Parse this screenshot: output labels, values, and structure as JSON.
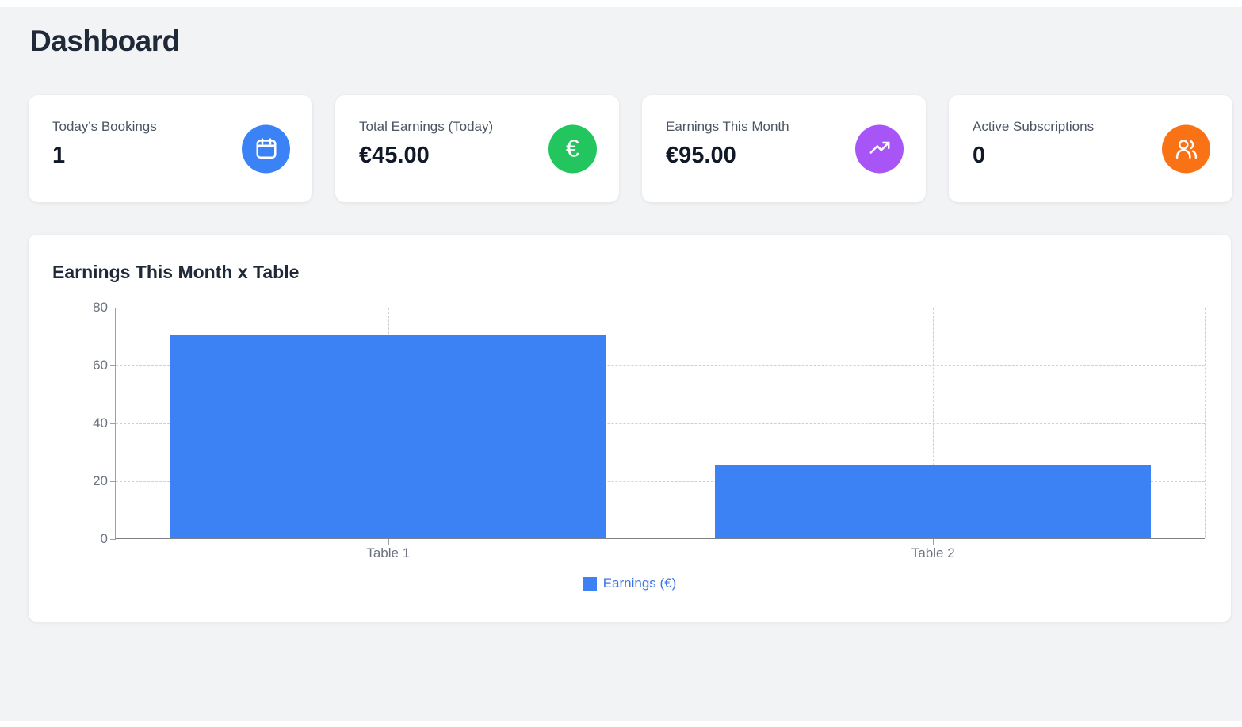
{
  "page": {
    "title": "Dashboard"
  },
  "stats": [
    {
      "label": "Today's Bookings",
      "value": "1",
      "icon": "calendar-icon",
      "color": "#3b82f6"
    },
    {
      "label": "Total Earnings (Today)",
      "value": "€45.00",
      "icon": "euro-icon",
      "color": "#22c55e"
    },
    {
      "label": "Earnings This Month",
      "value": "€95.00",
      "icon": "trending-up-icon",
      "color": "#a855f7"
    },
    {
      "label": "Active Subscriptions",
      "value": "0",
      "icon": "users-icon",
      "color": "#f97316"
    }
  ],
  "chart_card": {
    "title": "Earnings This Month x Table"
  },
  "chart_data": {
    "type": "bar",
    "title": "Earnings This Month x Table",
    "categories": [
      "Table 1",
      "Table 2"
    ],
    "series": [
      {
        "name": "Earnings (€)",
        "color": "#3d82f4",
        "values": [
          70,
          25
        ]
      }
    ],
    "xlabel": "",
    "ylabel": "",
    "ylim": [
      0,
      80
    ],
    "yticks": [
      0,
      20,
      40,
      60,
      80
    ],
    "grid": "dashed",
    "legend_position": "bottom",
    "bar_width_ratio": 0.8,
    "colors": {
      "grid": "#cbd0d6",
      "axis": "#9aa0a6",
      "tick_text": "#6b7280",
      "legend_text": "#3b76e0"
    }
  }
}
